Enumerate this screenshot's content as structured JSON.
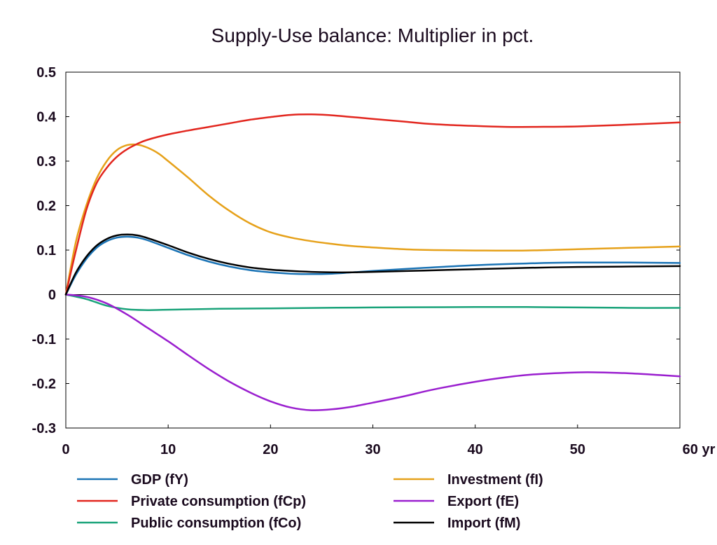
{
  "chart_data": {
    "type": "line",
    "title": "Supply-Use balance: Multiplier in pct.",
    "xlabel": "",
    "ylabel": "",
    "x_unit_label": "yr",
    "xlim": [
      0,
      60
    ],
    "ylim": [
      -0.3,
      0.5
    ],
    "x_ticks": [
      0,
      10,
      20,
      30,
      40,
      50,
      60
    ],
    "x_tick_labels": [
      "0",
      "10",
      "20",
      "30",
      "40",
      "50",
      "60 yr"
    ],
    "y_ticks": [
      -0.3,
      -0.2,
      -0.1,
      0,
      0.1,
      0.2,
      0.3,
      0.4,
      0.5
    ],
    "y_tick_labels": [
      "-0.3",
      "-0.2",
      "-0.1",
      "0",
      "0.1",
      "0.2",
      "0.3",
      "0.4",
      "0.5"
    ],
    "zero_line": true,
    "grid": false,
    "legend_position": "bottom",
    "series": [
      {
        "name": "GDP (fY)",
        "color": "#1a73b5",
        "points": [
          [
            0,
            0
          ],
          [
            1,
            0.045
          ],
          [
            2,
            0.08
          ],
          [
            3,
            0.105
          ],
          [
            4,
            0.12
          ],
          [
            5,
            0.128
          ],
          [
            6,
            0.13
          ],
          [
            7,
            0.128
          ],
          [
            8,
            0.122
          ],
          [
            10,
            0.105
          ],
          [
            12,
            0.088
          ],
          [
            14,
            0.074
          ],
          [
            16,
            0.063
          ],
          [
            18,
            0.055
          ],
          [
            20,
            0.05
          ],
          [
            22,
            0.047
          ],
          [
            24,
            0.046
          ],
          [
            26,
            0.047
          ],
          [
            28,
            0.05
          ],
          [
            30,
            0.053
          ],
          [
            35,
            0.06
          ],
          [
            40,
            0.066
          ],
          [
            45,
            0.07
          ],
          [
            50,
            0.072
          ],
          [
            55,
            0.072
          ],
          [
            60,
            0.071
          ]
        ]
      },
      {
        "name": "Private consumption (fCp)",
        "color": "#e2261e",
        "points": [
          [
            0,
            0
          ],
          [
            1,
            0.1
          ],
          [
            2,
            0.19
          ],
          [
            3,
            0.25
          ],
          [
            4,
            0.285
          ],
          [
            5,
            0.31
          ],
          [
            6,
            0.327
          ],
          [
            7,
            0.339
          ],
          [
            8,
            0.348
          ],
          [
            10,
            0.36
          ],
          [
            12,
            0.369
          ],
          [
            14,
            0.377
          ],
          [
            16,
            0.385
          ],
          [
            18,
            0.393
          ],
          [
            20,
            0.399
          ],
          [
            22,
            0.404
          ],
          [
            24,
            0.405
          ],
          [
            26,
            0.403
          ],
          [
            28,
            0.399
          ],
          [
            30,
            0.395
          ],
          [
            33,
            0.389
          ],
          [
            36,
            0.383
          ],
          [
            40,
            0.379
          ],
          [
            43,
            0.377
          ],
          [
            46,
            0.377
          ],
          [
            50,
            0.378
          ],
          [
            55,
            0.382
          ],
          [
            60,
            0.387
          ]
        ]
      },
      {
        "name": "Public consumption (fCo)",
        "color": "#1aa37a",
        "points": [
          [
            0,
            0
          ],
          [
            2,
            -0.01
          ],
          [
            4,
            -0.025
          ],
          [
            6,
            -0.033
          ],
          [
            8,
            -0.035
          ],
          [
            10,
            -0.034
          ],
          [
            15,
            -0.032
          ],
          [
            20,
            -0.031
          ],
          [
            30,
            -0.029
          ],
          [
            40,
            -0.028
          ],
          [
            45,
            -0.028
          ],
          [
            50,
            -0.029
          ],
          [
            55,
            -0.03
          ],
          [
            60,
            -0.03
          ]
        ]
      },
      {
        "name": "Investment (fI)",
        "color": "#e6a11a",
        "points": [
          [
            0,
            0
          ],
          [
            1,
            0.12
          ],
          [
            2,
            0.2
          ],
          [
            3,
            0.26
          ],
          [
            4,
            0.3
          ],
          [
            5,
            0.325
          ],
          [
            6,
            0.336
          ],
          [
            7,
            0.337
          ],
          [
            8,
            0.33
          ],
          [
            9,
            0.318
          ],
          [
            10,
            0.3
          ],
          [
            12,
            0.262
          ],
          [
            14,
            0.222
          ],
          [
            16,
            0.188
          ],
          [
            18,
            0.16
          ],
          [
            20,
            0.14
          ],
          [
            22,
            0.128
          ],
          [
            24,
            0.12
          ],
          [
            26,
            0.114
          ],
          [
            28,
            0.109
          ],
          [
            30,
            0.106
          ],
          [
            33,
            0.102
          ],
          [
            36,
            0.1
          ],
          [
            40,
            0.099
          ],
          [
            45,
            0.099
          ],
          [
            50,
            0.102
          ],
          [
            55,
            0.105
          ],
          [
            60,
            0.108
          ]
        ]
      },
      {
        "name": "Export (fE)",
        "color": "#9a1fcf",
        "points": [
          [
            0,
            0
          ],
          [
            2,
            -0.005
          ],
          [
            4,
            -0.02
          ],
          [
            6,
            -0.045
          ],
          [
            8,
            -0.075
          ],
          [
            10,
            -0.105
          ],
          [
            12,
            -0.137
          ],
          [
            14,
            -0.168
          ],
          [
            16,
            -0.196
          ],
          [
            18,
            -0.22
          ],
          [
            20,
            -0.24
          ],
          [
            22,
            -0.254
          ],
          [
            24,
            -0.26
          ],
          [
            26,
            -0.258
          ],
          [
            28,
            -0.252
          ],
          [
            30,
            -0.243
          ],
          [
            33,
            -0.229
          ],
          [
            36,
            -0.213
          ],
          [
            40,
            -0.196
          ],
          [
            43,
            -0.186
          ],
          [
            46,
            -0.179
          ],
          [
            50,
            -0.175
          ],
          [
            52,
            -0.175
          ],
          [
            55,
            -0.177
          ],
          [
            58,
            -0.181
          ],
          [
            60,
            -0.184
          ]
        ]
      },
      {
        "name": "Import (fM)",
        "color": "#000000",
        "points": [
          [
            0,
            0
          ],
          [
            1,
            0.05
          ],
          [
            2,
            0.085
          ],
          [
            3,
            0.11
          ],
          [
            4,
            0.125
          ],
          [
            5,
            0.133
          ],
          [
            6,
            0.135
          ],
          [
            7,
            0.133
          ],
          [
            8,
            0.127
          ],
          [
            10,
            0.111
          ],
          [
            12,
            0.094
          ],
          [
            14,
            0.08
          ],
          [
            16,
            0.069
          ],
          [
            18,
            0.061
          ],
          [
            20,
            0.056
          ],
          [
            22,
            0.053
          ],
          [
            24,
            0.051
          ],
          [
            26,
            0.05
          ],
          [
            28,
            0.05
          ],
          [
            30,
            0.051
          ],
          [
            35,
            0.054
          ],
          [
            40,
            0.057
          ],
          [
            45,
            0.06
          ],
          [
            50,
            0.062
          ],
          [
            55,
            0.063
          ],
          [
            60,
            0.064
          ]
        ]
      }
    ]
  }
}
